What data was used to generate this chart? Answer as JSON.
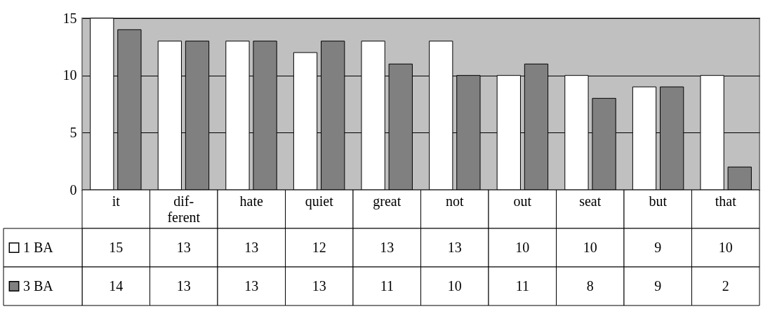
{
  "chart_data": {
    "type": "bar",
    "categories": [
      "it",
      "dif-\nferent",
      "hate",
      "quiet",
      "great",
      "not",
      "out",
      "seat",
      "but",
      "that"
    ],
    "series": [
      {
        "name": "1 BA",
        "color": "#ffffff",
        "values": [
          15,
          13,
          13,
          12,
          13,
          13,
          10,
          10,
          9,
          10
        ]
      },
      {
        "name": "3 BA",
        "color": "#808080",
        "values": [
          14,
          13,
          13,
          13,
          11,
          10,
          11,
          8,
          9,
          2
        ]
      }
    ],
    "ylim": [
      0,
      15
    ],
    "yticks": [
      0,
      5,
      10,
      15
    ],
    "grid": "y",
    "legend": "bottom left",
    "data_labels": true
  }
}
